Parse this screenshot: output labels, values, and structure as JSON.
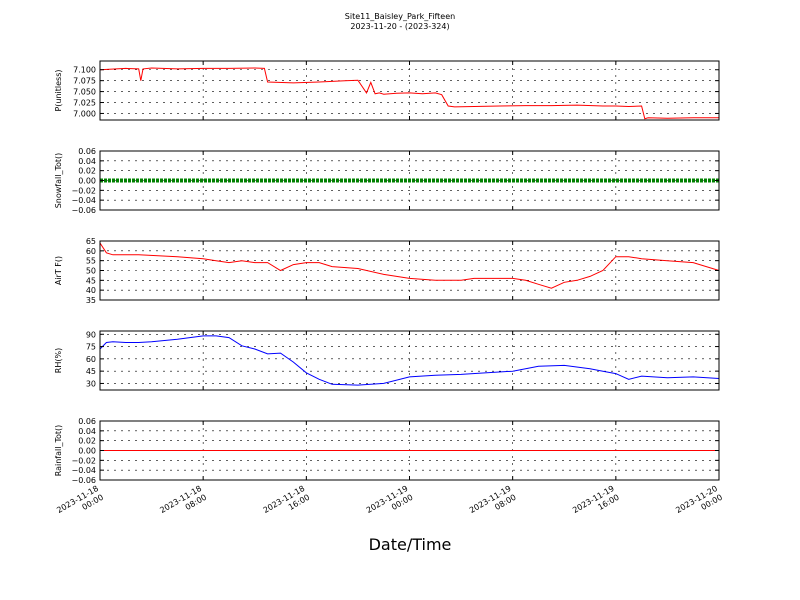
{
  "figure": {
    "title": "Site11_Baisley_Park_Fifteen",
    "subtitle": "2023-11-20 - (2023-324)",
    "xlabel": "Date/Time"
  },
  "chart_data": [
    {
      "type": "line",
      "ylabel": "P(unitless)",
      "ylim": [
        6.985,
        7.12
      ],
      "yticks": [
        7.0,
        7.025,
        7.05,
        7.075,
        7.1
      ],
      "ytick_labels": [
        "7.000",
        "7.025",
        "7.050",
        "7.075",
        "7.100"
      ],
      "grid": true,
      "series": [
        {
          "color": "#ff0000",
          "x": [
            "2023-11-18 00:00",
            "2023-11-18 02:00",
            "2023-11-18 03:00",
            "2023-11-18 03:10",
            "2023-11-18 03:20",
            "2023-11-18 04:00",
            "2023-11-18 06:00",
            "2023-11-18 08:00",
            "2023-11-18 10:00",
            "2023-11-18 12:00",
            "2023-11-18 12:45",
            "2023-11-18 13:00",
            "2023-11-18 15:00",
            "2023-11-18 17:00",
            "2023-11-18 19:00",
            "2023-11-18 20:00",
            "2023-11-18 20:40",
            "2023-11-18 21:00",
            "2023-11-18 21:20",
            "2023-11-18 21:40",
            "2023-11-18 22:00",
            "2023-11-18 23:00",
            "2023-11-19 00:00",
            "2023-11-19 01:00",
            "2023-11-19 02:00",
            "2023-11-19 02:30",
            "2023-11-19 03:00",
            "2023-11-19 03:30",
            "2023-11-19 05:00",
            "2023-11-19 07:00",
            "2023-11-19 09:00",
            "2023-11-19 11:00",
            "2023-11-19 13:00",
            "2023-11-19 15:00",
            "2023-11-19 16:00",
            "2023-11-19 17:00",
            "2023-11-19 18:00",
            "2023-11-19 18:15",
            "2023-11-19 18:30",
            "2023-11-19 20:00",
            "2023-11-19 22:00",
            "2023-11-20 00:00"
          ],
          "y": [
            7.1,
            7.103,
            7.102,
            7.075,
            7.102,
            7.104,
            7.102,
            7.103,
            7.103,
            7.104,
            7.103,
            7.072,
            7.07,
            7.072,
            7.075,
            7.076,
            7.047,
            7.071,
            7.045,
            7.047,
            7.044,
            7.046,
            7.047,
            7.045,
            7.047,
            7.043,
            7.017,
            7.015,
            7.016,
            7.017,
            7.018,
            7.018,
            7.019,
            7.017,
            7.017,
            7.016,
            7.017,
            6.988,
            6.99,
            6.989,
            6.99,
            6.99
          ]
        }
      ]
    },
    {
      "type": "line",
      "ylabel": "Snowfall_Tot()",
      "ylim": [
        -0.06,
        0.06
      ],
      "yticks": [
        -0.06,
        -0.04,
        -0.02,
        0.0,
        0.02,
        0.04,
        0.06
      ],
      "ytick_labels": [
        "−0.06",
        "−0.04",
        "−0.02",
        "0.00",
        "0.02",
        "0.04",
        "0.06"
      ],
      "grid": true,
      "series": [
        {
          "color": "#008000",
          "x": [
            "2023-11-18 00:00",
            "2023-11-20 00:00"
          ],
          "y": [
            0,
            0
          ]
        }
      ]
    },
    {
      "type": "line",
      "ylabel": "AirT F()",
      "ylim": [
        35,
        65
      ],
      "yticks": [
        35,
        40,
        45,
        50,
        55,
        60,
        65
      ],
      "ytick_labels": [
        "35",
        "40",
        "45",
        "50",
        "55",
        "60",
        "65"
      ],
      "grid": true,
      "series": [
        {
          "color": "#ff0000",
          "x": [
            "2023-11-18 00:00",
            "2023-11-18 00:30",
            "2023-11-18 01:00",
            "2023-11-18 03:00",
            "2023-11-18 06:00",
            "2023-11-18 08:00",
            "2023-11-18 09:00",
            "2023-11-18 10:00",
            "2023-11-18 11:00",
            "2023-11-18 12:00",
            "2023-11-18 13:00",
            "2023-11-18 14:00",
            "2023-11-18 15:00",
            "2023-11-18 16:00",
            "2023-11-18 17:00",
            "2023-11-18 18:00",
            "2023-11-18 20:00",
            "2023-11-18 22:00",
            "2023-11-19 00:00",
            "2023-11-19 02:00",
            "2023-11-19 04:00",
            "2023-11-19 05:00",
            "2023-11-19 06:00",
            "2023-11-19 07:00",
            "2023-11-19 08:00",
            "2023-11-19 09:00",
            "2023-11-19 10:00",
            "2023-11-19 11:00",
            "2023-11-19 12:00",
            "2023-11-19 13:00",
            "2023-11-19 14:00",
            "2023-11-19 15:00",
            "2023-11-19 16:00",
            "2023-11-19 17:00",
            "2023-11-19 18:00",
            "2023-11-19 20:00",
            "2023-11-19 22:00",
            "2023-11-20 00:00"
          ],
          "y": [
            64,
            59,
            58,
            58,
            57,
            56,
            55,
            54,
            55,
            54,
            54,
            50,
            53,
            54,
            54,
            52,
            51,
            48,
            46,
            45,
            45,
            46,
            46,
            46,
            46,
            45,
            43,
            41,
            44,
            45,
            47,
            50,
            57,
            57,
            56,
            55,
            54,
            50
          ]
        }
      ]
    },
    {
      "type": "line",
      "ylabel": "RH(%)",
      "ylim": [
        22,
        94
      ],
      "yticks": [
        30,
        45,
        60,
        75,
        90
      ],
      "ytick_labels": [
        "30",
        "45",
        "60",
        "75",
        "90"
      ],
      "grid": true,
      "series": [
        {
          "color": "#0000ff",
          "x": [
            "2023-11-18 00:00",
            "2023-11-18 00:30",
            "2023-11-18 01:00",
            "2023-11-18 02:00",
            "2023-11-18 03:00",
            "2023-11-18 04:00",
            "2023-11-18 06:00",
            "2023-11-18 08:00",
            "2023-11-18 09:00",
            "2023-11-18 10:00",
            "2023-11-18 11:00",
            "2023-11-18 12:00",
            "2023-11-18 13:00",
            "2023-11-18 14:00",
            "2023-11-18 15:00",
            "2023-11-18 16:00",
            "2023-11-18 17:00",
            "2023-11-18 18:00",
            "2023-11-18 20:00",
            "2023-11-18 22:00",
            "2023-11-19 00:00",
            "2023-11-19 02:00",
            "2023-11-19 04:00",
            "2023-11-19 06:00",
            "2023-11-19 08:00",
            "2023-11-19 10:00",
            "2023-11-19 12:00",
            "2023-11-19 14:00",
            "2023-11-19 15:00",
            "2023-11-19 16:00",
            "2023-11-19 17:00",
            "2023-11-19 18:00",
            "2023-11-19 20:00",
            "2023-11-19 22:00",
            "2023-11-20 00:00"
          ],
          "y": [
            72,
            80,
            81,
            80,
            80,
            81,
            84,
            88,
            88,
            86,
            76,
            72,
            66,
            67,
            56,
            43,
            35,
            29,
            28,
            30,
            38,
            40,
            41,
            43,
            45,
            51,
            52,
            48,
            45,
            42,
            35,
            39,
            37,
            38,
            36
          ]
        }
      ]
    },
    {
      "type": "line",
      "ylabel": "Rainfall_Tot()",
      "ylim": [
        -0.06,
        0.06
      ],
      "yticks": [
        -0.06,
        -0.04,
        -0.02,
        0.0,
        0.02,
        0.04,
        0.06
      ],
      "ytick_labels": [
        "−0.06",
        "−0.04",
        "−0.02",
        "0.00",
        "0.02",
        "0.04",
        "0.06"
      ],
      "grid": true,
      "series": [
        {
          "color": "#ff0000",
          "x": [
            "2023-11-18 00:00",
            "2023-11-20 00:00"
          ],
          "y": [
            0,
            0
          ]
        }
      ]
    }
  ],
  "x_axis": {
    "range": [
      "2023-11-18 00:00",
      "2023-11-20 00:00"
    ],
    "ticks": [
      {
        "at": "2023-11-18 00:00",
        "line1": "2023-11-18",
        "line2": "00:00"
      },
      {
        "at": "2023-11-18 08:00",
        "line1": "2023-11-18",
        "line2": "08:00"
      },
      {
        "at": "2023-11-18 16:00",
        "line1": "2023-11-18",
        "line2": "16:00"
      },
      {
        "at": "2023-11-19 00:00",
        "line1": "2023-11-19",
        "line2": "00:00"
      },
      {
        "at": "2023-11-19 08:00",
        "line1": "2023-11-19",
        "line2": "08:00"
      },
      {
        "at": "2023-11-19 16:00",
        "line1": "2023-11-19",
        "line2": "16:00"
      },
      {
        "at": "2023-11-20 00:00",
        "line1": "2023-11-20",
        "line2": "00:00"
      }
    ]
  }
}
